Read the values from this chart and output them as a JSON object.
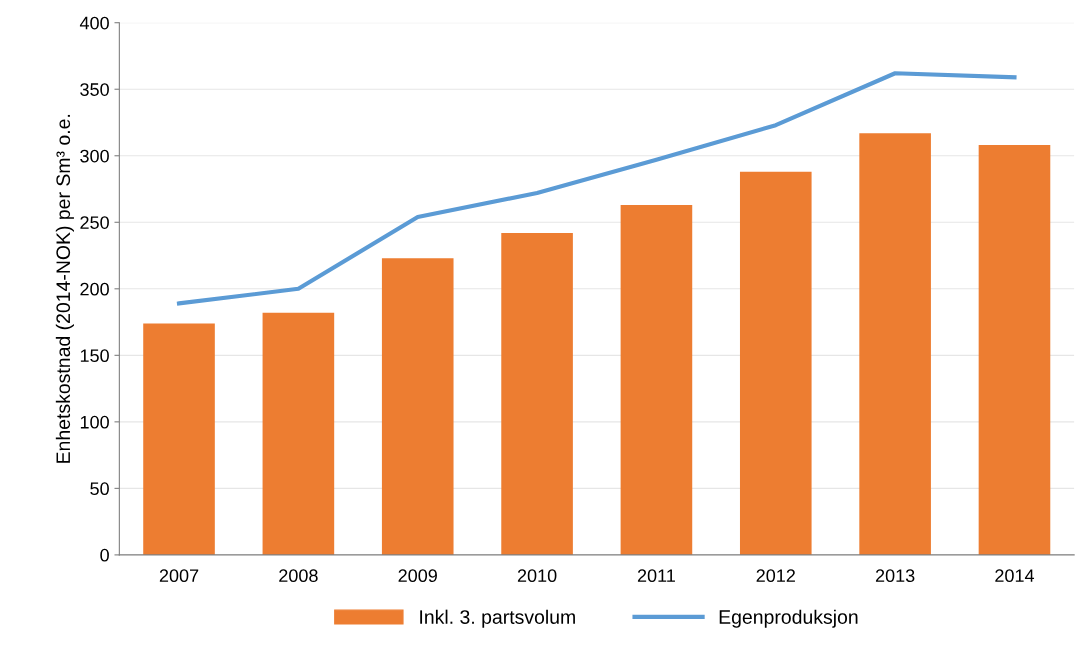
{
  "chart_data": {
    "type": "bar",
    "ylabel": "Enhetskostnad (2014-NOK) per Sm³ o.e.",
    "categories": [
      "2007",
      "2008",
      "2009",
      "2010",
      "2011",
      "2012",
      "2013",
      "2014"
    ],
    "series": [
      {
        "name": "Inkl. 3. partsvolum",
        "color": "#ed7d31",
        "values": [
          174,
          182,
          223,
          242,
          263,
          288,
          317,
          308
        ]
      },
      {
        "name": "Egenproduksjon",
        "type": "line",
        "color": "#5b9bd5",
        "values": [
          189,
          200,
          254,
          272,
          297,
          323,
          362,
          359
        ]
      }
    ],
    "ylim": [
      0,
      400
    ],
    "yticks": [
      0,
      50,
      100,
      150,
      200,
      250,
      300,
      350,
      400
    ],
    "grid": "y",
    "legend": "bottom",
    "marker": "none",
    "line_style": "solid"
  }
}
